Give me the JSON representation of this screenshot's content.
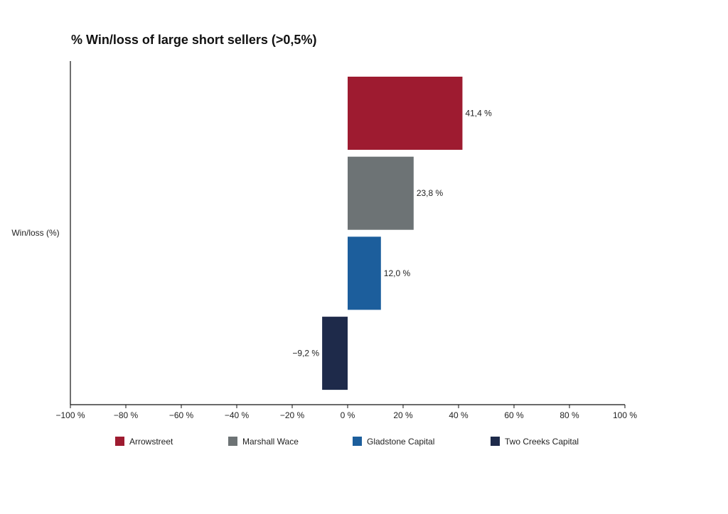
{
  "chart_data": {
    "type": "bar",
    "orientation": "horizontal",
    "title": "% Win/loss of large short sellers (>0,5%)",
    "ylabel": "Win/loss (%)",
    "xlabel": "",
    "xlim": [
      -100,
      100
    ],
    "x_ticks": [
      -100,
      -80,
      -60,
      -40,
      -20,
      0,
      20,
      40,
      60,
      80,
      100
    ],
    "x_tick_labels": [
      "−100 %",
      "−80 %",
      "−60 %",
      "−40 %",
      "−20 %",
      "0 %",
      "20 %",
      "40 %",
      "60 %",
      "80 %",
      "100 %"
    ],
    "grid": false,
    "legend_position": "bottom",
    "series": [
      {
        "name": "Arrowstreet",
        "value": 41.4,
        "label": "41,4 %",
        "color": "#9e1b30"
      },
      {
        "name": "Marshall Wace",
        "value": 23.8,
        "label": "23,8 %",
        "color": "#6d7375"
      },
      {
        "name": "Gladstone Capital",
        "value": 12.0,
        "label": "12,0 %",
        "color": "#1c5e9c"
      },
      {
        "name": "Two Creeks Capital",
        "value": -9.2,
        "label": "−9,2 %",
        "color": "#1e2a4a"
      }
    ]
  }
}
